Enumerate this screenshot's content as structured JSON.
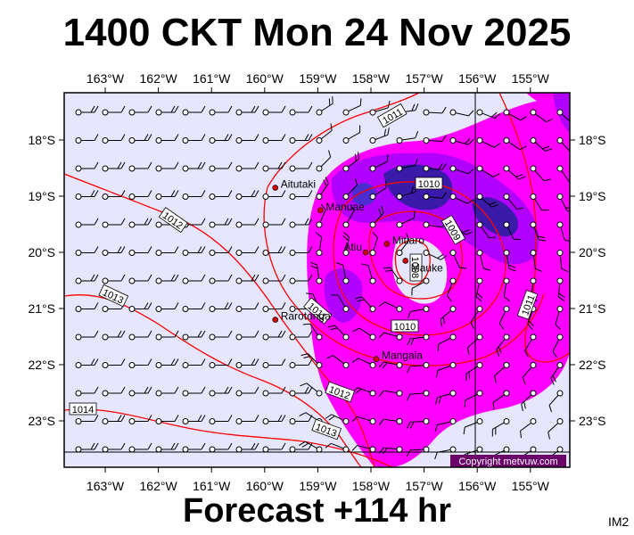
{
  "title": "1400 CKT Mon 24 Nov 2025",
  "footer": "Forecast +114 hr",
  "image_code": "IM2",
  "copyright": "Copyright metvuw.com",
  "lon_labels": [
    "163°W",
    "162°W",
    "161°W",
    "160°W",
    "159°W",
    "158°W",
    "157°W",
    "156°W",
    "155°W"
  ],
  "lat_labels": [
    "18°S",
    "19°S",
    "20°S",
    "21°S",
    "22°S",
    "23°S"
  ],
  "places": [
    {
      "name": "Aitutaki",
      "lon": -159.8,
      "lat": -18.85
    },
    {
      "name": "Manuae",
      "lon": -158.95,
      "lat": -19.25
    },
    {
      "name": "Mitiaro",
      "lon": -157.7,
      "lat": -19.85
    },
    {
      "name": "Atiu",
      "lon": -158.1,
      "lat": -20.0
    },
    {
      "name": "Mauke",
      "lon": -157.35,
      "lat": -20.15
    },
    {
      "name": "Rarotonga",
      "lon": -159.8,
      "lat": -21.2
    },
    {
      "name": "Mangaia",
      "lon": -157.9,
      "lat": -21.9
    }
  ],
  "isobar_labels": [
    "1011",
    "1010",
    "1009",
    "1008",
    "1010",
    "1011",
    "1012",
    "1013",
    "1014",
    "1011",
    "1012",
    "1013"
  ],
  "colors": {
    "background": "#e6e6ff",
    "isobar": "#ff0000",
    "rain_light": "#ff00ff",
    "rain_mid": "#b200ff",
    "rain_heavy": "#3300aa"
  }
}
